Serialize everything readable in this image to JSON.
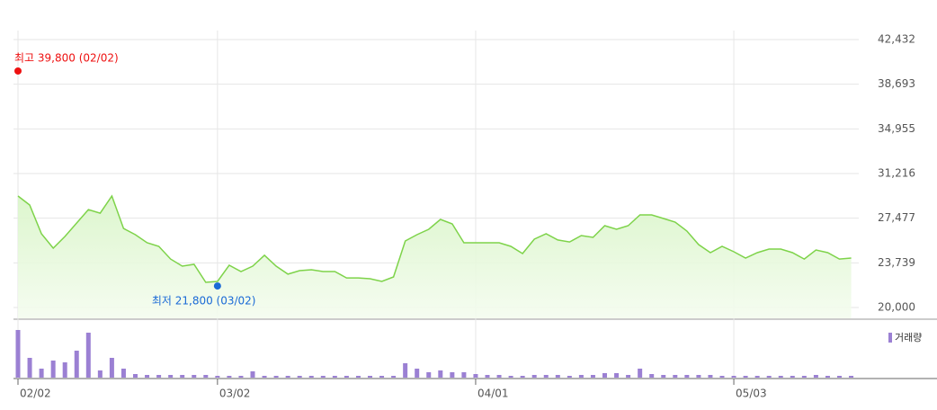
{
  "chart_data": {
    "type": "stock",
    "categories": [
      "02/02",
      null,
      null,
      null,
      null,
      null,
      null,
      null,
      null,
      null,
      null,
      null,
      null,
      null,
      null,
      null,
      null,
      "03/02",
      null,
      null,
      null,
      null,
      null,
      null,
      null,
      null,
      null,
      null,
      null,
      null,
      null,
      null,
      null,
      null,
      null,
      null,
      null,
      null,
      null,
      "04/01",
      null,
      null,
      null,
      null,
      null,
      null,
      null,
      null,
      null,
      null,
      null,
      null,
      null,
      null,
      null,
      null,
      null,
      null,
      null,
      null,
      null,
      "05/03",
      null,
      null,
      null,
      null,
      null,
      null,
      null,
      null,
      null,
      null
    ],
    "price": {
      "color": "#7ed34a",
      "values": [
        29333,
        28580,
        26170,
        24970,
        25950,
        27075,
        28200,
        27900,
        29333,
        26620,
        26100,
        25420,
        25120,
        24060,
        23460,
        23610,
        22110,
        22180,
        23540,
        23010,
        23460,
        24370,
        23460,
        22790,
        23090,
        23160,
        23010,
        23010,
        22480,
        22480,
        22410,
        22180,
        22560,
        25570,
        26100,
        26550,
        27380,
        27000,
        25420,
        25420,
        25420,
        25420,
        25120,
        24520,
        25720,
        26170,
        25650,
        25490,
        26020,
        25870,
        26850,
        26550,
        26850,
        27750,
        27750,
        27450,
        27150,
        26400,
        25270,
        24590,
        25120,
        24670,
        24140,
        24590,
        24890,
        24890,
        24590,
        24060,
        24820,
        24590,
        24060,
        24140
      ]
    },
    "volume": {
      "name": "거래량",
      "color": "#9b80d3",
      "values": [
        53,
        22,
        10,
        19,
        17,
        30,
        50,
        8,
        22,
        10,
        4,
        3,
        3,
        3,
        3,
        3,
        3,
        2,
        2,
        2,
        7,
        2,
        2,
        2,
        2,
        2,
        2,
        2,
        2,
        2,
        2,
        2,
        2,
        16,
        10,
        6,
        8,
        6,
        6,
        4,
        3,
        3,
        2,
        2,
        3,
        3,
        3,
        2,
        3,
        3,
        5,
        5,
        3,
        10,
        4,
        3,
        3,
        3,
        3,
        3,
        2,
        2,
        2,
        2,
        2,
        2,
        2,
        2,
        3,
        2,
        2,
        2
      ]
    },
    "high": {
      "label": "최고 39,800 (02/02)",
      "value": 39800,
      "date": "02/02",
      "color": "#ee1111"
    },
    "low": {
      "label": "최저 21,800 (03/02)",
      "value": 21800,
      "date": "03/02",
      "color": "#1a6ad6"
    },
    "ylim": [
      20000,
      42432
    ],
    "yticks": [
      {
        "value": 20000,
        "label": "20,000"
      },
      {
        "value": 23739,
        "label": "23,739"
      },
      {
        "value": 27477,
        "label": "27,477"
      },
      {
        "value": 31216,
        "label": "31,216"
      },
      {
        "value": 34955,
        "label": "34,955"
      },
      {
        "value": 38693,
        "label": "38,693"
      },
      {
        "value": 42432,
        "label": "42,432"
      }
    ],
    "grid": true
  }
}
